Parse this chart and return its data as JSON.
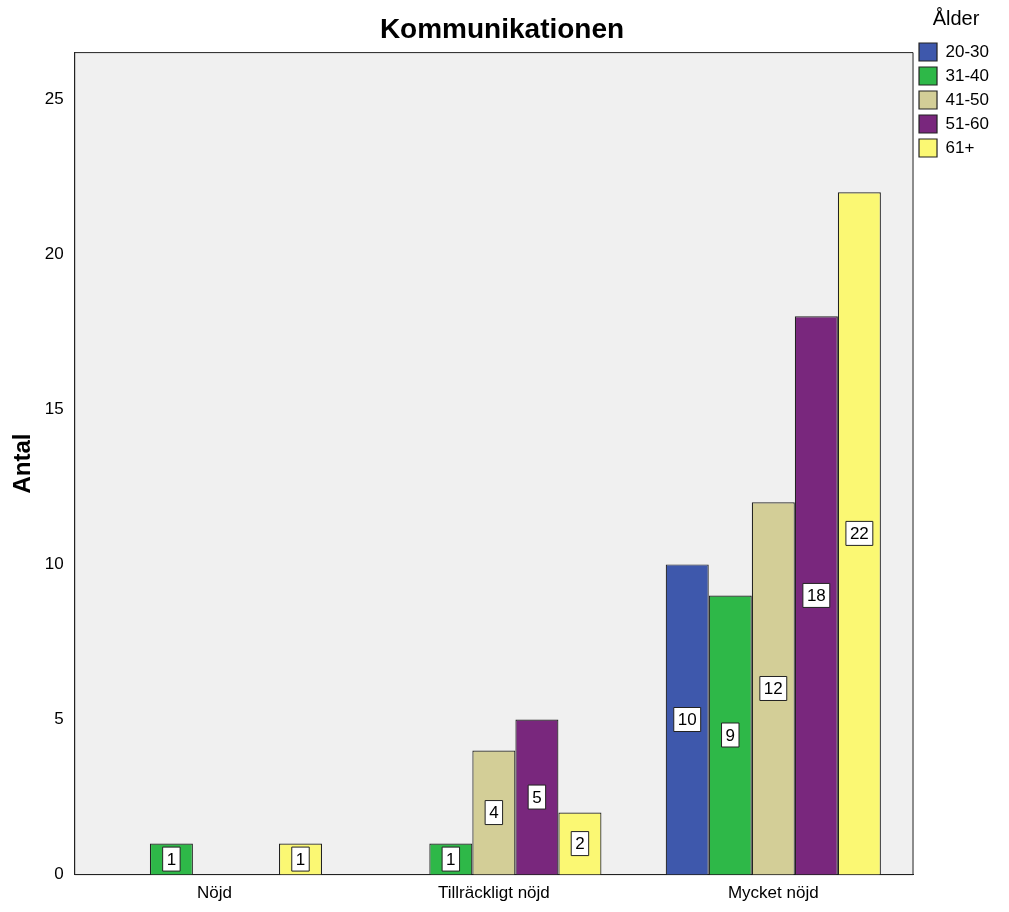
{
  "chart_data": {
    "type": "bar",
    "title": "Kommunikationen",
    "ylabel": "Antal",
    "legend_title": "Ålder",
    "categories": [
      "Nöjd",
      "Tillräckligt nöjd",
      "Mycket nöjd"
    ],
    "series": [
      {
        "name": "20-30",
        "color": "#3e58ac",
        "values": [
          null,
          null,
          10
        ]
      },
      {
        "name": "31-40",
        "color": "#2eb848",
        "values": [
          1,
          1,
          9
        ]
      },
      {
        "name": "41-50",
        "color": "#d3ce97",
        "values": [
          null,
          4,
          12
        ]
      },
      {
        "name": "51-60",
        "color": "#79277d",
        "values": [
          null,
          5,
          18
        ]
      },
      {
        "name": "61+",
        "color": "#fbf873",
        "values": [
          1,
          2,
          22
        ]
      }
    ],
    "ylim": [
      0,
      26.5
    ],
    "yticks": [
      0,
      5,
      10,
      15,
      20,
      25
    ],
    "grid": false,
    "legend": "right",
    "data_labels": true
  }
}
